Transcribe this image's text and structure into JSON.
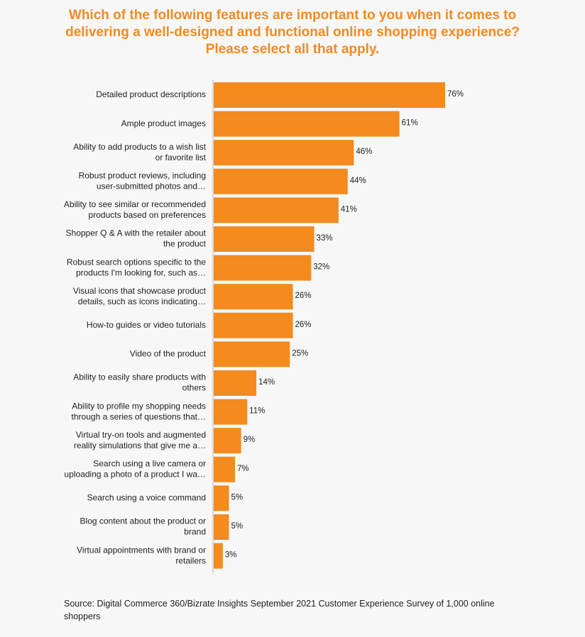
{
  "title": "Which of the following features are important to you when it comes to delivering a well-designed and functional online shopping experience? Please select all that apply.",
  "source": "Source:  Digital Commerce 360/Bizrate Insights  September 2021 Customer Experience Survey of 1,000 online shoppers",
  "colors": {
    "bar": "#f58a1f",
    "title": "#f58a1f",
    "axis": "#bbbbbb"
  },
  "chart_data": {
    "type": "bar",
    "orientation": "horizontal",
    "title": "Which of the following features are important to you when it comes to delivering a well-designed and functional online shopping experience? Please select all that apply.",
    "xlabel": "",
    "ylabel": "",
    "xlim": [
      0,
      100
    ],
    "grid": false,
    "legend": "none",
    "value_suffix": "%",
    "categories": [
      [
        "Detailed product descriptions"
      ],
      [
        "Ample product images"
      ],
      [
        "Ability to add products to a wish list",
        "or favorite list"
      ],
      [
        "Robust product reviews, including",
        "user-submitted photos and…"
      ],
      [
        "Ability to see similar or recommended",
        "products based on preferences"
      ],
      [
        "Shopper Q & A with the retailer about",
        "the product"
      ],
      [
        "Robust search options specific to the",
        "products I'm looking for, such as…"
      ],
      [
        "Visual icons that showcase product",
        "details, such as icons indicating…"
      ],
      [
        "How-to guides or video tutorials"
      ],
      [
        "Video of the product"
      ],
      [
        "Ability to easily share products with",
        "others"
      ],
      [
        "Ability to profile my shopping needs",
        "through a series of questions that…"
      ],
      [
        "Virtual try-on tools and augmented",
        "reality simulations that give me a…"
      ],
      [
        "Search using a live camera or",
        "uploading a photo of a product I wa…"
      ],
      [
        "Search using a voice command"
      ],
      [
        "Blog content about the product or",
        "brand"
      ],
      [
        "Virtual appointments with brand or",
        "retailers"
      ]
    ],
    "values": [
      76,
      61,
      46,
      44,
      41,
      33,
      32,
      26,
      26,
      25,
      14,
      11,
      9,
      7,
      5,
      5,
      3
    ]
  }
}
